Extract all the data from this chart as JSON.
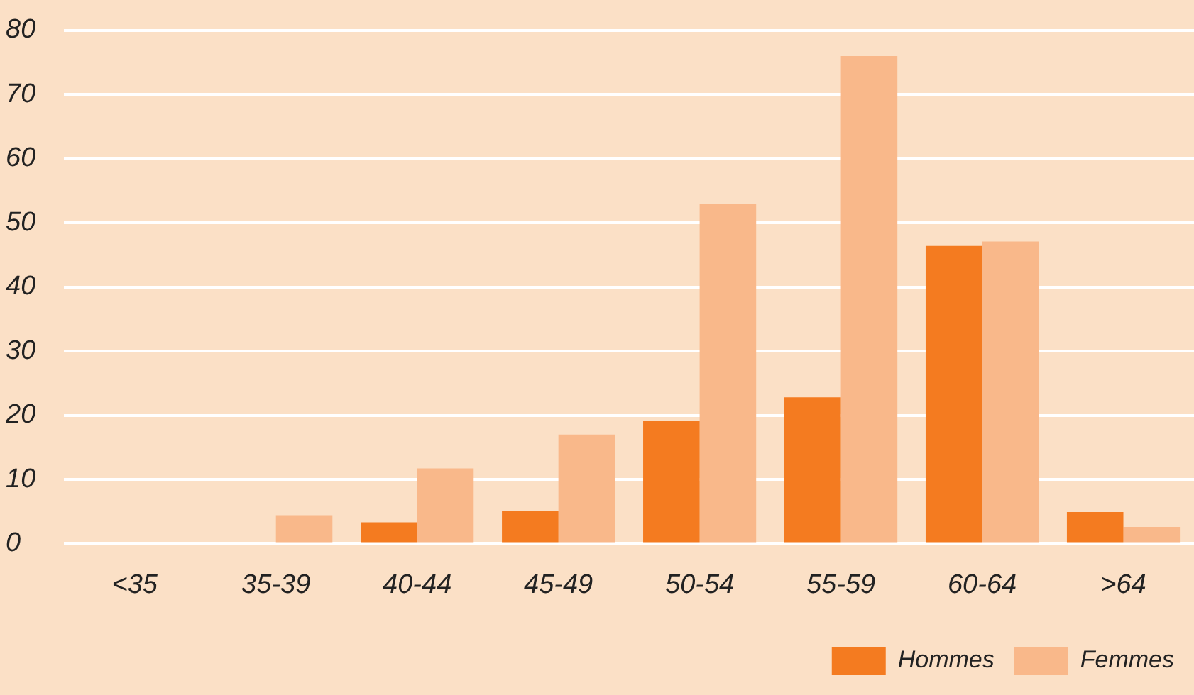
{
  "chart_data": {
    "type": "bar",
    "categories": [
      "<35",
      "35-39",
      "40-44",
      "45-49",
      "50-54",
      "55-59",
      "60-64",
      ">64"
    ],
    "series": [
      {
        "name": "Hommes",
        "color": "#f47b20",
        "values": [
          0,
          0,
          3.3,
          5.1,
          19.1,
          22.8,
          46.4,
          4.9
        ]
      },
      {
        "name": "Femmes",
        "color": "#f9b88a",
        "values": [
          0,
          4.4,
          11.7,
          17,
          52.9,
          76,
          47.1,
          2.6
        ]
      }
    ],
    "ylim": [
      0,
      80
    ],
    "yticks": [
      0,
      10,
      20,
      30,
      40,
      50,
      60,
      70,
      80
    ],
    "grid": "y",
    "legend": "bottom right"
  }
}
